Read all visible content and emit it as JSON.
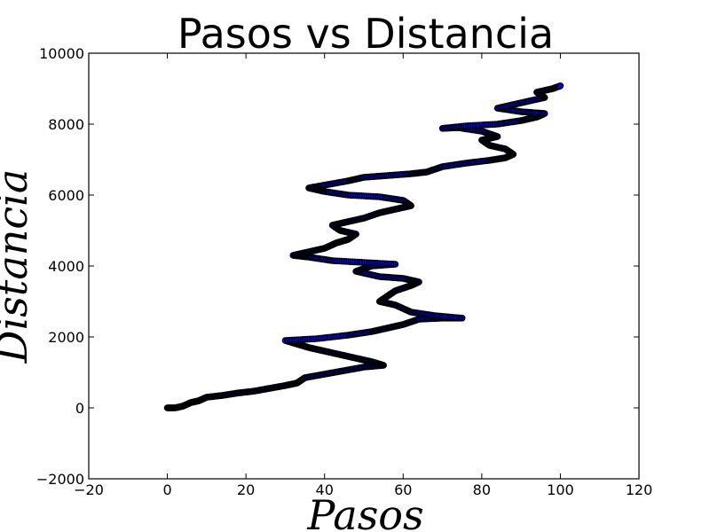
{
  "chart_data": {
    "type": "scatter",
    "title": "Pasos vs Distancia",
    "xlabel": "Pasos",
    "ylabel": "Distancia",
    "xlim": [
      -20,
      120
    ],
    "ylim": [
      -2000,
      10000
    ],
    "xticks": [
      -20,
      0,
      20,
      40,
      60,
      80,
      100,
      120
    ],
    "yticks": [
      -2000,
      0,
      2000,
      4000,
      6000,
      8000,
      10000
    ],
    "xtick_labels": [
      "−20",
      "0",
      "20",
      "40",
      "60",
      "80",
      "100",
      "120"
    ],
    "ytick_labels": [
      "−2000",
      "0",
      "2000",
      "4000",
      "6000",
      "8000",
      "10000"
    ],
    "grid": false,
    "marker_color": "#0000ff",
    "marker_edge_color": "#000000",
    "path": [
      [
        0,
        0
      ],
      [
        2,
        0
      ],
      [
        4,
        50
      ],
      [
        6,
        150
      ],
      [
        8,
        200
      ],
      [
        10,
        300
      ],
      [
        14,
        350
      ],
      [
        18,
        420
      ],
      [
        22,
        470
      ],
      [
        26,
        550
      ],
      [
        30,
        630
      ],
      [
        33,
        700
      ],
      [
        35,
        850
      ],
      [
        40,
        950
      ],
      [
        45,
        1050
      ],
      [
        50,
        1150
      ],
      [
        55,
        1200
      ],
      [
        52,
        1300
      ],
      [
        48,
        1400
      ],
      [
        44,
        1500
      ],
      [
        40,
        1600
      ],
      [
        36,
        1700
      ],
      [
        33,
        1800
      ],
      [
        30,
        1900
      ],
      [
        38,
        1950
      ],
      [
        46,
        2050
      ],
      [
        52,
        2150
      ],
      [
        56,
        2250
      ],
      [
        60,
        2350
      ],
      [
        64,
        2500
      ],
      [
        70,
        2530
      ],
      [
        75,
        2530
      ],
      [
        68,
        2600
      ],
      [
        62,
        2700
      ],
      [
        58,
        2900
      ],
      [
        54,
        3000
      ],
      [
        56,
        3150
      ],
      [
        58,
        3300
      ],
      [
        62,
        3450
      ],
      [
        64,
        3550
      ],
      [
        60,
        3650
      ],
      [
        54,
        3700
      ],
      [
        48,
        3850
      ],
      [
        52,
        4000
      ],
      [
        58,
        4050
      ],
      [
        50,
        4100
      ],
      [
        42,
        4150
      ],
      [
        36,
        4250
      ],
      [
        32,
        4300
      ],
      [
        36,
        4400
      ],
      [
        40,
        4500
      ],
      [
        43,
        4650
      ],
      [
        46,
        4750
      ],
      [
        48,
        4900
      ],
      [
        44,
        5000
      ],
      [
        42,
        5150
      ],
      [
        46,
        5250
      ],
      [
        50,
        5350
      ],
      [
        54,
        5500
      ],
      [
        58,
        5600
      ],
      [
        62,
        5700
      ],
      [
        60,
        5850
      ],
      [
        54,
        5950
      ],
      [
        46,
        6000
      ],
      [
        40,
        6100
      ],
      [
        36,
        6200
      ],
      [
        40,
        6280
      ],
      [
        46,
        6400
      ],
      [
        50,
        6500
      ],
      [
        56,
        6550
      ],
      [
        62,
        6600
      ],
      [
        66,
        6650
      ],
      [
        70,
        6800
      ],
      [
        76,
        6900
      ],
      [
        82,
        6980
      ],
      [
        86,
        7050
      ],
      [
        88,
        7150
      ],
      [
        86,
        7300
      ],
      [
        82,
        7400
      ],
      [
        80,
        7550
      ],
      [
        84,
        7650
      ],
      [
        80,
        7800
      ],
      [
        74,
        7900
      ],
      [
        70,
        7880
      ],
      [
        76,
        7950
      ],
      [
        84,
        8000
      ],
      [
        90,
        8100
      ],
      [
        94,
        8200
      ],
      [
        96,
        8300
      ],
      [
        90,
        8350
      ],
      [
        84,
        8450
      ],
      [
        90,
        8600
      ],
      [
        96,
        8750
      ],
      [
        94,
        8900
      ],
      [
        98,
        9000
      ],
      [
        100,
        9080
      ]
    ]
  }
}
